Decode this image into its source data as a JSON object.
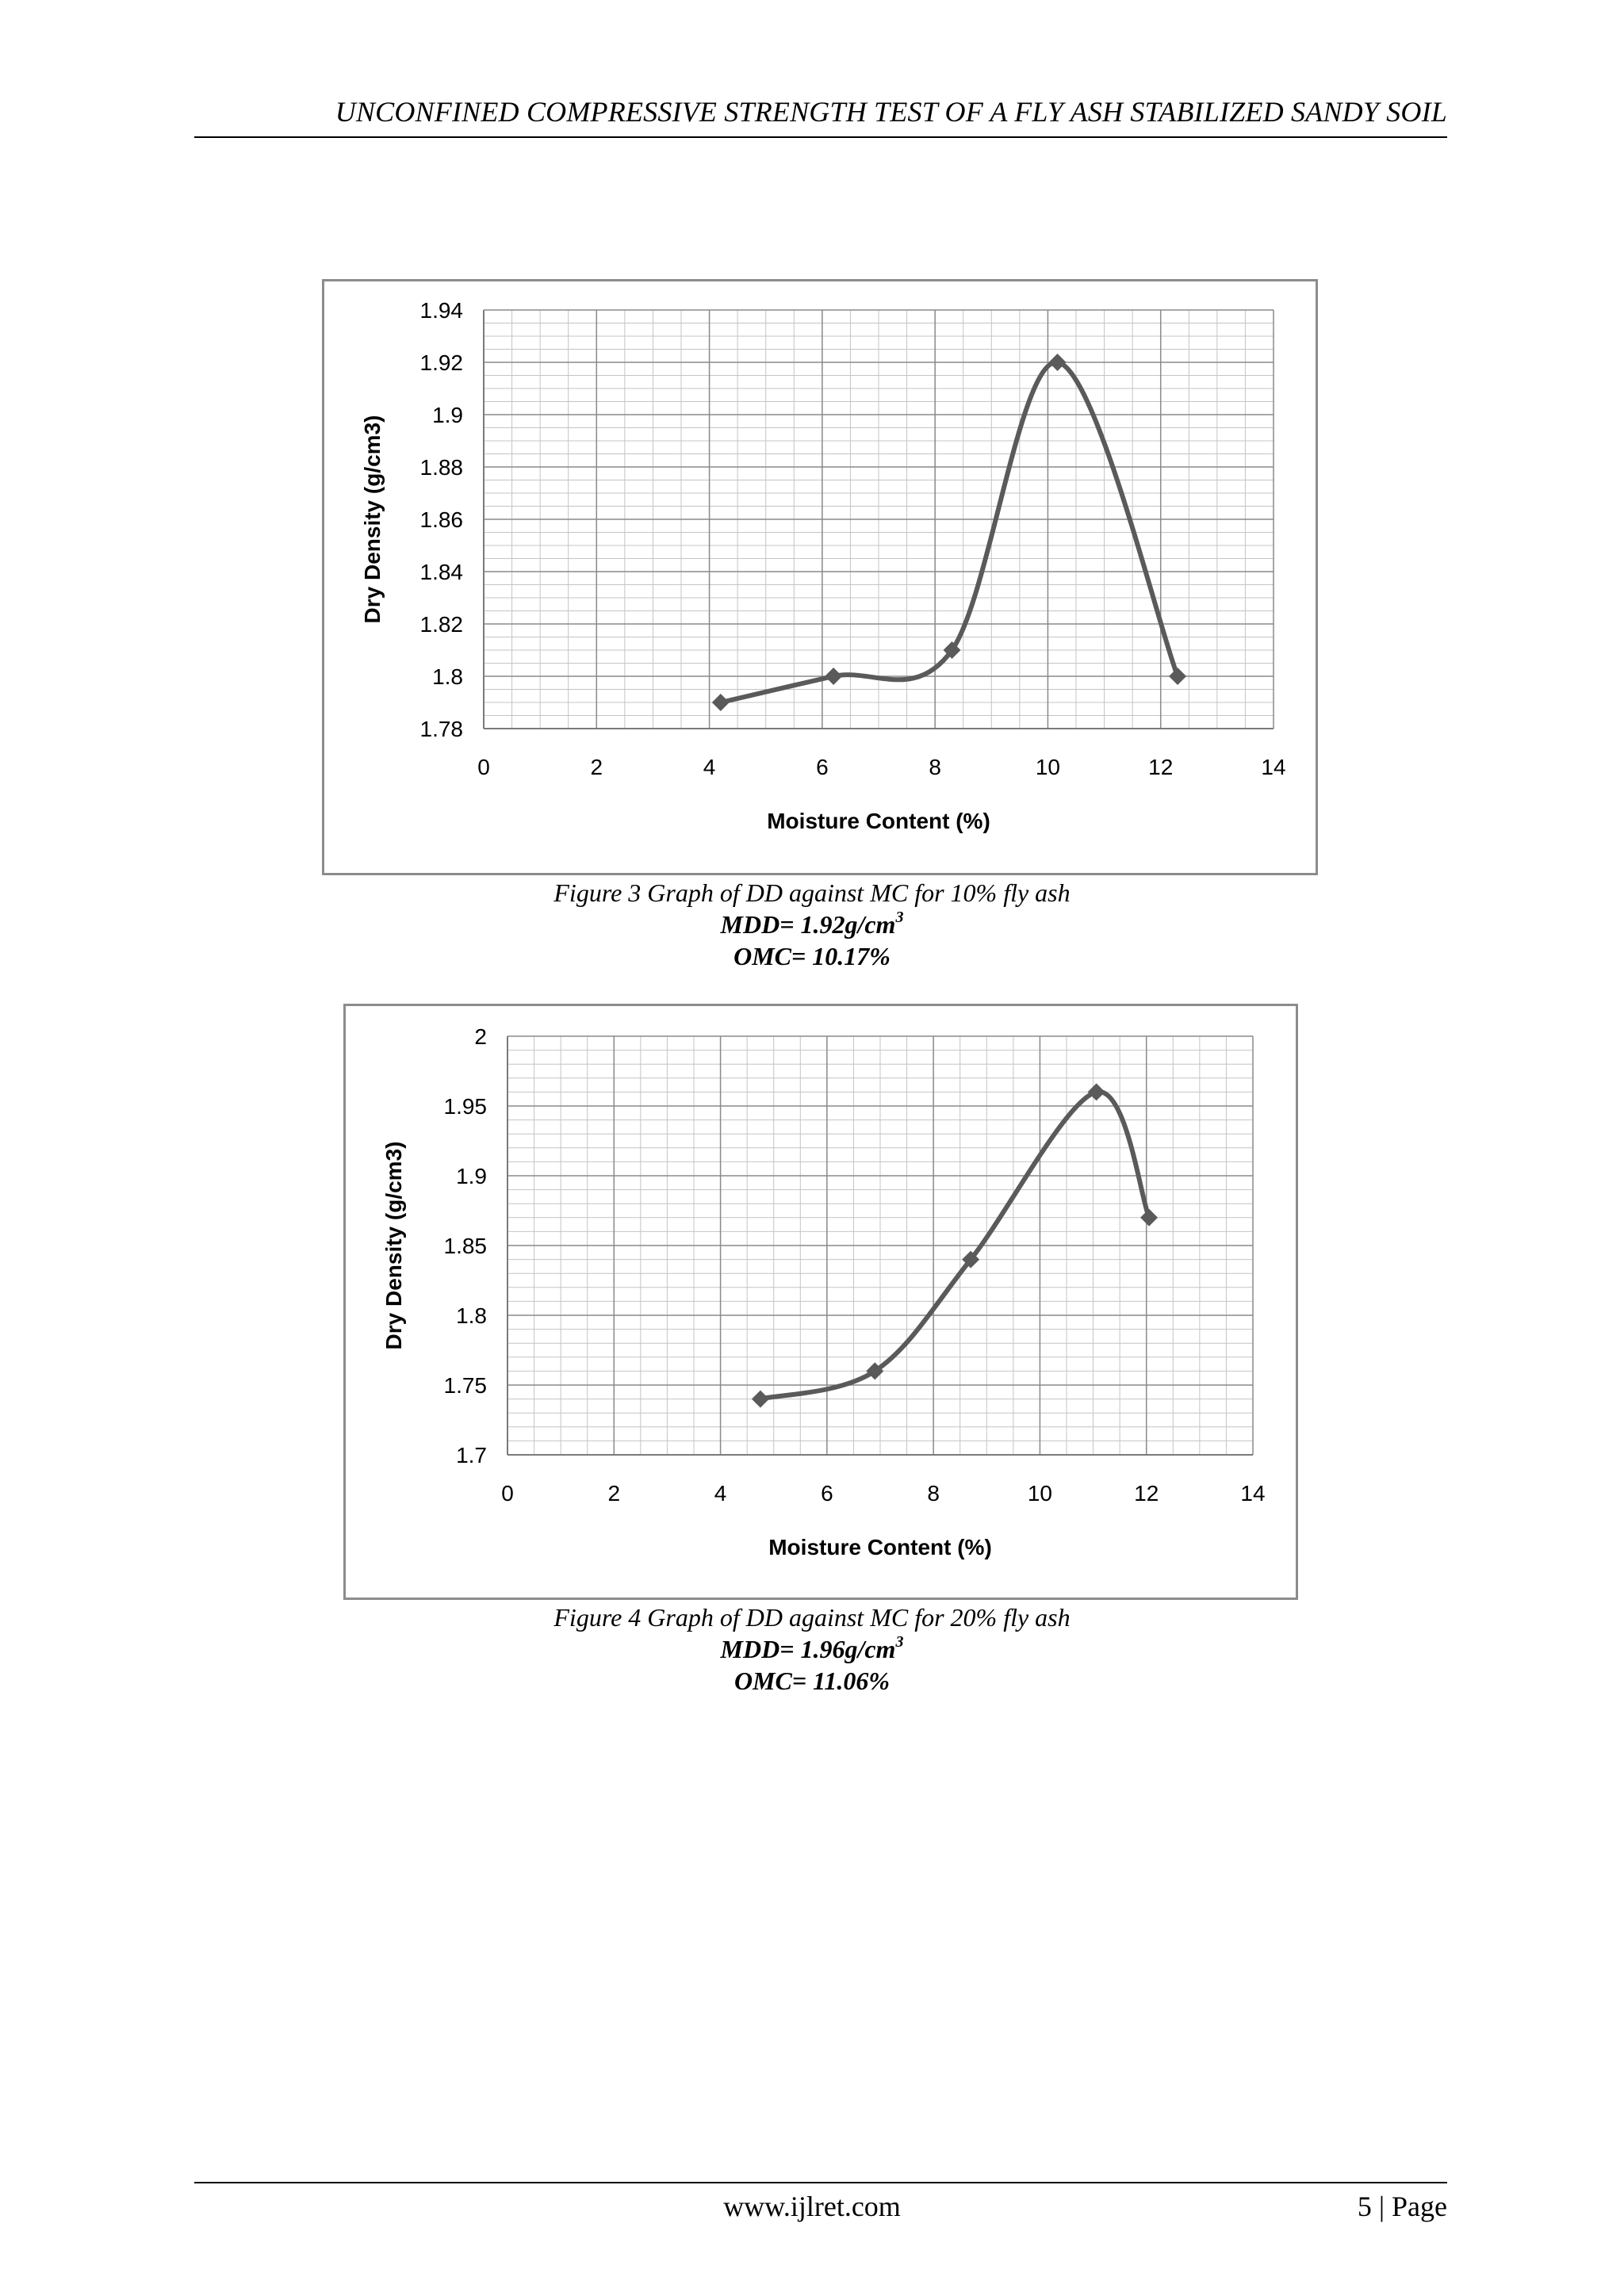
{
  "header": {
    "running_title": "UNCONFINED COMPRESSIVE STRENGTH TEST OF A FLY ASH STABILIZED SANDY SOIL"
  },
  "footer": {
    "url": "www.ijlret.com",
    "page": "5 | Page"
  },
  "figures": [
    {
      "caption": "Figure 3 Graph of DD against MC for 10% fly ash",
      "mdd_label": "MDD= 1.92g/cm",
      "mdd_sup": "3",
      "omc_label": "OMC= 10.17%"
    },
    {
      "caption": "Figure 4 Graph of DD against MC for 20% fly ash",
      "mdd_label": "MDD= 1.96g/cm",
      "mdd_sup": "3",
      "omc_label": "OMC= 11.06%"
    }
  ],
  "chart_data": [
    {
      "type": "scatter",
      "xlabel": "Moisture Content (%)",
      "ylabel": "Dry Density (g/cm3)",
      "xlim": [
        0,
        14
      ],
      "ylim": [
        1.78,
        1.94
      ],
      "x_ticks": [
        "0",
        "2",
        "4",
        "6",
        "8",
        "10",
        "12",
        "14"
      ],
      "y_ticks": [
        "1.78",
        "1.8",
        "1.82",
        "1.84",
        "1.86",
        "1.88",
        "1.9",
        "1.92",
        "1.94"
      ],
      "x": [
        4.2,
        6.2,
        8.3,
        10.17,
        12.3
      ],
      "y": [
        1.79,
        1.8,
        1.81,
        1.92,
        1.8
      ],
      "grid": true,
      "smooth_line": true,
      "marker": "diamond",
      "color": "#5a5a5a"
    },
    {
      "type": "scatter",
      "xlabel": "Moisture Content (%)",
      "ylabel": "Dry Density (g/cm3)",
      "xlim": [
        0,
        14
      ],
      "ylim": [
        1.7,
        2.0
      ],
      "x_ticks": [
        "0",
        "2",
        "4",
        "6",
        "8",
        "10",
        "12",
        "14"
      ],
      "y_ticks": [
        "1.7",
        "1.75",
        "1.8",
        "1.85",
        "1.9",
        "1.95",
        "2"
      ],
      "x": [
        4.75,
        6.9,
        8.7,
        11.06,
        12.05
      ],
      "y": [
        1.74,
        1.76,
        1.84,
        1.96,
        1.87
      ],
      "grid": true,
      "smooth_line": true,
      "marker": "diamond",
      "color": "#5a5a5a"
    }
  ]
}
